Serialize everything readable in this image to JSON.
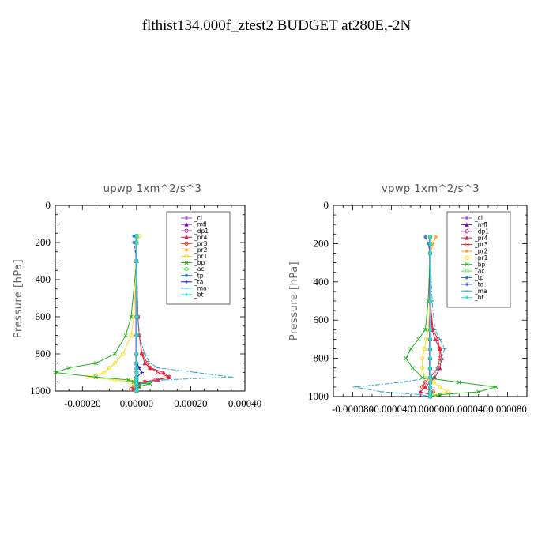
{
  "title": "flthist134.000f_ztest2  BUDGET at280E,-2N",
  "legend_labels": [
    "_cl",
    "_mfl",
    "_dp1",
    "_pr4",
    "_pr3",
    "_pr2",
    "_pr1",
    "_bp",
    "_ac",
    "_tp",
    "_ta",
    "_ma",
    "_bt"
  ],
  "series_colors": [
    "#a64fd6",
    "#7b0aa0",
    "#8b1a8b",
    "#c81e5a",
    "#ff2020",
    "#ffa020",
    "#f2e020",
    "#20b020",
    "#60e060",
    "#1e78c8",
    "#1e1ec8",
    "#2aa8d8",
    "#20e8e8"
  ],
  "chart_data": [
    {
      "type": "line",
      "title": "upwp   1xm^2/s^3",
      "ylabel": "Pressure [hPa]",
      "ylim": [
        1000,
        0
      ],
      "xlim": [
        -0.0003,
        0.0004
      ],
      "yticks": [
        "0",
        "200",
        "400",
        "600",
        "800",
        "1000"
      ],
      "xticks": [
        "-0.00020",
        "0.00000",
        "0.00020",
        "0.00040"
      ],
      "grid": false,
      "legend": "top-right",
      "p": [
        165,
        200,
        300,
        600,
        700,
        800,
        850,
        875,
        900,
        925,
        940,
        950,
        960,
        975,
        990,
        1000
      ],
      "series": [
        {
          "name": "_cl",
          "values": [
            0,
            0,
            0,
            0,
            0,
            0,
            0,
            0,
            0,
            0,
            0,
            0,
            0,
            0,
            0,
            0
          ]
        },
        {
          "name": "_mfl",
          "values": [
            0,
            0,
            0,
            0,
            0,
            0,
            0,
            0,
            0,
            0,
            0,
            0,
            0,
            0,
            0,
            0
          ]
        },
        {
          "name": "_dp1",
          "values": [
            0,
            0,
            0,
            0,
            0,
            0,
            0,
            0,
            0,
            0,
            0,
            0,
            0,
            0,
            0,
            0
          ]
        },
        {
          "name": "_pr4",
          "values": [
            0,
            0,
            0,
            5e-06,
            1e-05,
            2e-05,
            3e-05,
            5e-05,
            0.0001,
            0.00012,
            8e-05,
            3e-05,
            1e-05,
            1e-05,
            0,
            0
          ]
        },
        {
          "name": "_pr3",
          "values": [
            0,
            0,
            0,
            5e-06,
            1e-05,
            2e-05,
            4e-05,
            5e-05,
            8e-05,
            0.00012,
            7e-05,
            3e-05,
            1e-05,
            -1e-05,
            -2e-05,
            0
          ]
        },
        {
          "name": "_pr2",
          "values": [
            0,
            0,
            0,
            0,
            0,
            0,
            0,
            0,
            0,
            0,
            0,
            0,
            0,
            0,
            0,
            0
          ]
        },
        {
          "name": "_pr1",
          "values": [
            1e-05,
            0,
            0,
            -1e-05,
            -2e-05,
            -5e-05,
            -8e-05,
            -0.0001,
            -0.00012,
            -0.00018,
            -8e-05,
            -2e-05,
            -1e-05,
            0,
            0,
            0
          ]
        },
        {
          "name": "_bp",
          "values": [
            0,
            0,
            0,
            -2e-05,
            -4e-05,
            -8e-05,
            -0.00015,
            -0.00025,
            -0.0003,
            -0.00015,
            -3e-05,
            -1e-05,
            5e-05,
            1e-05,
            0,
            0
          ]
        },
        {
          "name": "_ac",
          "values": [
            0,
            0,
            0,
            0,
            0,
            0,
            0,
            0,
            0,
            0,
            0,
            0,
            0,
            0,
            0,
            0
          ]
        },
        {
          "name": "_tp",
          "values": [
            -1e-05,
            -1e-05,
            0,
            0,
            0,
            0,
            0,
            0,
            0,
            0,
            0,
            0,
            0,
            0,
            0,
            0
          ]
        },
        {
          "name": "_ta",
          "values": [
            0,
            0,
            0,
            0,
            0,
            0,
            0,
            1e-05,
            2e-05,
            0,
            0,
            0,
            0,
            0,
            0,
            0
          ]
        },
        {
          "name": "_ma",
          "values": [
            0,
            0,
            0,
            5e-06,
            1e-05,
            3e-05,
            5e-05,
            8e-05,
            0.00022,
            0.00035,
            0.0001,
            5e-05,
            2e-05,
            0,
            0,
            0
          ]
        },
        {
          "name": "_bt",
          "values": [
            0,
            0,
            0,
            0,
            0,
            0,
            0,
            0,
            0,
            0,
            0,
            0,
            0,
            0,
            0,
            0
          ]
        }
      ]
    },
    {
      "type": "line",
      "title": "vpwp   1xm^2/s^3",
      "ylabel": "Pressure [hPa]",
      "ylim": [
        1000,
        0
      ],
      "xlim": [
        -0.0001,
        0.0001
      ],
      "yticks": [
        "0",
        "200",
        "400",
        "600",
        "800",
        "1000"
      ],
      "xticks": [
        "-0.000080",
        "-0.000040",
        "0.000000",
        "0.000040",
        "0.000080"
      ],
      "grid": false,
      "legend": "top-right",
      "p": [
        165,
        200,
        250,
        500,
        650,
        700,
        750,
        800,
        850,
        900,
        925,
        950,
        975,
        990,
        1000
      ],
      "series": [
        {
          "name": "_cl",
          "values": [
            0,
            0,
            0,
            0,
            0,
            0,
            0,
            0,
            0,
            0,
            0,
            0,
            0,
            0,
            0
          ]
        },
        {
          "name": "_mfl",
          "values": [
            0,
            0,
            0,
            0,
            0,
            0,
            0,
            0,
            0,
            0,
            0,
            0,
            0,
            0,
            0
          ]
        },
        {
          "name": "_dp1",
          "values": [
            0,
            0,
            0,
            0,
            0,
            0,
            0,
            0,
            0,
            0,
            0,
            0,
            0,
            0,
            0
          ]
        },
        {
          "name": "_pr4",
          "values": [
            0,
            0,
            0,
            0,
            2e-06,
            5e-06,
            1e-05,
            1.2e-05,
            1e-05,
            5e-06,
            0,
            -5e-06,
            -1e-05,
            0,
            0
          ]
        },
        {
          "name": "_pr3",
          "values": [
            0,
            0,
            0,
            0,
            3e-06,
            8e-06,
            1e-05,
            1e-05,
            8e-06,
            0,
            -5e-06,
            -8e-06,
            3e-06,
            0,
            0
          ]
        },
        {
          "name": "_pr2",
          "values": [
            6e-06,
            3e-06,
            0,
            0,
            0,
            0,
            0,
            0,
            0,
            0,
            0,
            0,
            0,
            0,
            0
          ]
        },
        {
          "name": "_pr1",
          "values": [
            0,
            0,
            0,
            0,
            -2e-06,
            -4e-06,
            -6e-06,
            -8e-06,
            -8e-06,
            -6e-06,
            4e-06,
            1e-05,
            1.8e-05,
            5e-06,
            0
          ]
        },
        {
          "name": "_bp",
          "values": [
            0,
            0,
            0,
            -2e-06,
            -5e-06,
            -1.2e-05,
            -2e-05,
            -2.5e-05,
            -1.8e-05,
            -8e-06,
            3e-05,
            6.8e-05,
            5e-05,
            1e-05,
            0
          ]
        },
        {
          "name": "_ac",
          "values": [
            0,
            0,
            0,
            0,
            0,
            0,
            0,
            0,
            0,
            0,
            0,
            0,
            0,
            0,
            0
          ]
        },
        {
          "name": "_tp",
          "values": [
            -5e-06,
            -2e-06,
            0,
            0,
            0,
            0,
            0,
            0,
            0,
            0,
            0,
            0,
            0,
            0,
            0
          ]
        },
        {
          "name": "_ta",
          "values": [
            0,
            0,
            0,
            0,
            0,
            0,
            0,
            0,
            0,
            0,
            0,
            0,
            0,
            0,
            0
          ]
        },
        {
          "name": "_ma",
          "values": [
            0,
            0,
            0,
            2e-06,
            5e-06,
            1e-05,
            1.5e-05,
            1.2e-05,
            8e-06,
            3e-06,
            -3e-05,
            -7.8e-05,
            -5e-05,
            -1e-05,
            0
          ]
        },
        {
          "name": "_bt",
          "values": [
            0,
            0,
            0,
            0,
            0,
            0,
            0,
            0,
            0,
            0,
            0,
            0,
            0,
            0,
            0
          ]
        }
      ]
    }
  ]
}
